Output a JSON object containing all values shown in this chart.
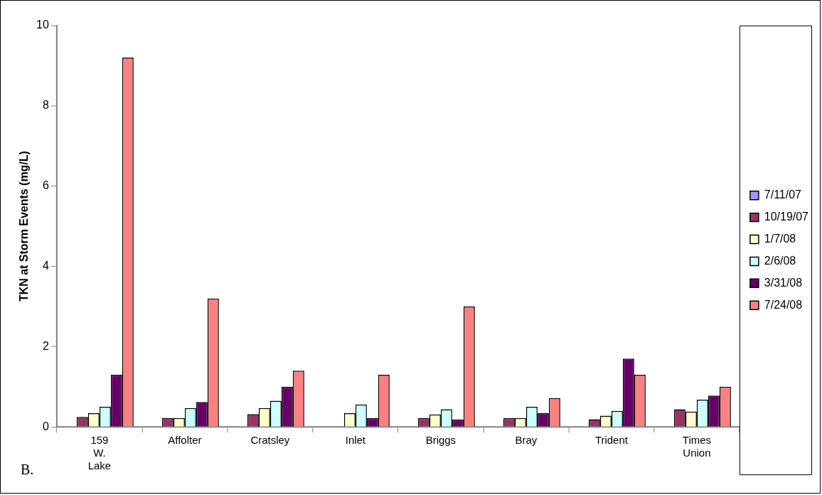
{
  "chart_data": {
    "type": "bar",
    "ylabel": "TKN at Storm Events (mg/L)",
    "categories": [
      "159 W. Lake",
      "Affolter",
      "Cratsley",
      "Inlet",
      "Briggs",
      "Bray",
      "Trident",
      "Times Union"
    ],
    "series": [
      {
        "name": "7/11/07",
        "color": "#9999ff",
        "values": [
          null,
          null,
          null,
          null,
          null,
          null,
          null,
          null
        ]
      },
      {
        "name": "10/19/07",
        "color": "#993366",
        "values": [
          0.25,
          0.22,
          0.32,
          null,
          0.22,
          0.22,
          0.19,
          0.44
        ]
      },
      {
        "name": "1/7/08",
        "color": "#ffffcc",
        "values": [
          0.34,
          0.22,
          0.47,
          0.34,
          0.31,
          0.22,
          0.28,
          0.38
        ]
      },
      {
        "name": "2/6/08",
        "color": "#ccffff",
        "values": [
          0.5,
          0.47,
          0.65,
          0.56,
          0.44,
          0.5,
          0.4,
          0.68
        ]
      },
      {
        "name": "3/31/08",
        "color": "#660066",
        "values": [
          1.3,
          0.62,
          1.0,
          0.22,
          0.18,
          0.34,
          1.7,
          0.78
        ]
      },
      {
        "name": "7/24/08",
        "color": "#ff8080",
        "values": [
          9.2,
          3.2,
          1.4,
          1.3,
          3.0,
          0.72,
          1.3,
          1.0
        ]
      }
    ],
    "ylim": [
      0,
      10
    ],
    "yticks": [
      0,
      2,
      4,
      6,
      8,
      10
    ],
    "grid": false,
    "legend": "right",
    "annotations": [
      "B."
    ]
  }
}
